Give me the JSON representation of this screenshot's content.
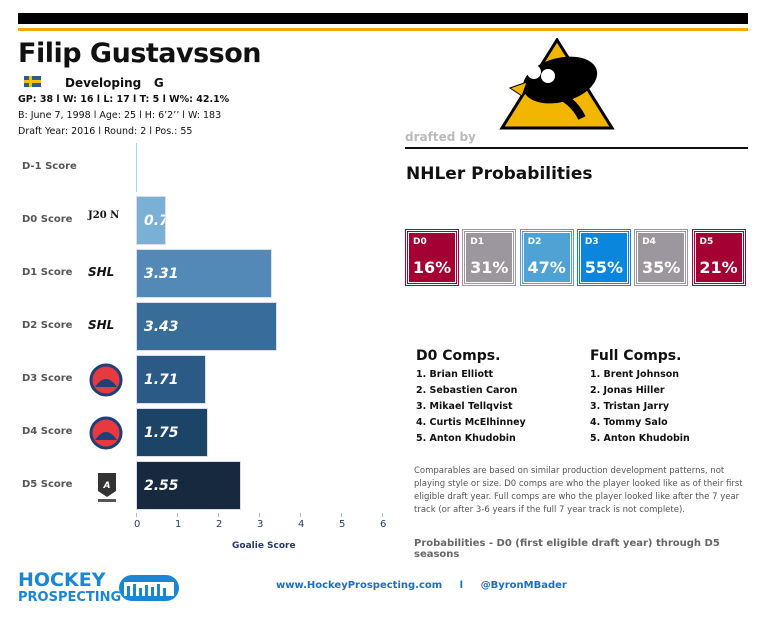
{
  "player": {
    "name": "Filip Gustavsson",
    "country": "Sweden",
    "status": "Developing",
    "position": "G",
    "stats_line": "GP: 38 l W: 16 l L: 17  l T: 5  l W%: 42.1%",
    "bio_line": "B: June 7, 1998 l  Age: 25 l H: 6’2’’ l W: 183",
    "draft_line": "Draft Year: 2016 l Round: 2 l Pos.: 55"
  },
  "team_logo": "pittsburgh-penguins-logo",
  "drafted_by": "drafted by",
  "probabilities": {
    "title": "NHLer Probabilities",
    "items": [
      {
        "label": "D0",
        "value": "16%",
        "color": "#a50034"
      },
      {
        "label": "D1",
        "value": "31%",
        "color": "#9c979e"
      },
      {
        "label": "D2",
        "value": "47%",
        "color": "#4ea2d4"
      },
      {
        "label": "D3",
        "value": "55%",
        "color": "#0a87dd"
      },
      {
        "label": "D4",
        "value": "35%",
        "color": "#9c979e"
      },
      {
        "label": "D5",
        "value": "21%",
        "color": "#a50034"
      }
    ],
    "note": "Probabilities - D0 (first eligible draft year) through D5 seasons"
  },
  "comps": {
    "d0_title": "D0 Comps.",
    "d0": [
      "1. Brian Elliott",
      "2. Sebastien Caron",
      "3. Mikael Tellqvist",
      "4. Curtis McElhinney",
      "5. Anton Khudobin"
    ],
    "full_title": "Full Comps.",
    "full": [
      "1. Brent Johnson",
      "2. Jonas Hiller",
      "3. Tristan Jarry",
      "4. Tommy Salo",
      "5. Anton Khudobin"
    ],
    "note": "Comparables are based on similar production development patterns, not playing style or size. D0 comps are who the player looked like as of their first eligible draft year. Full comps are who the player looked like after the 7 year track (or after 3-6 years if the full 7 year track is not complete)."
  },
  "chart_data": {
    "type": "bar",
    "orientation": "horizontal",
    "xlabel": "Goalie Score",
    "xlim": [
      0,
      6
    ],
    "ticks": [
      "0",
      "1",
      "2",
      "3",
      "4",
      "5",
      "6"
    ],
    "grid": false,
    "categories": [
      "D-1 Score",
      "D0 Score",
      "D1 Score",
      "D2  Score",
      "D3 Score",
      "D4  Score",
      "D5 Score"
    ],
    "leagues": [
      "",
      "J20 N",
      "SHL",
      "SHL",
      "AHL",
      "AHL",
      "HockeyAllsvenskan"
    ],
    "values": [
      null,
      0.73,
      3.31,
      3.43,
      1.71,
      1.75,
      2.55
    ],
    "labels": [
      "",
      "0.73",
      "3.31",
      "3.43",
      "1.71",
      "1.75",
      "2.55"
    ],
    "colors": [
      "#a9d4ea",
      "#7ab0d6",
      "#5289b6",
      "#386d9a",
      "#2a5a85",
      "#1c4467",
      "#16293e"
    ]
  },
  "footer": {
    "brand_line1": "HOCKEY",
    "brand_line2": "PROSPECTING",
    "site": "www.HockeyProspecting.com",
    "sep": "l",
    "twitter": "@ByronMBader"
  }
}
